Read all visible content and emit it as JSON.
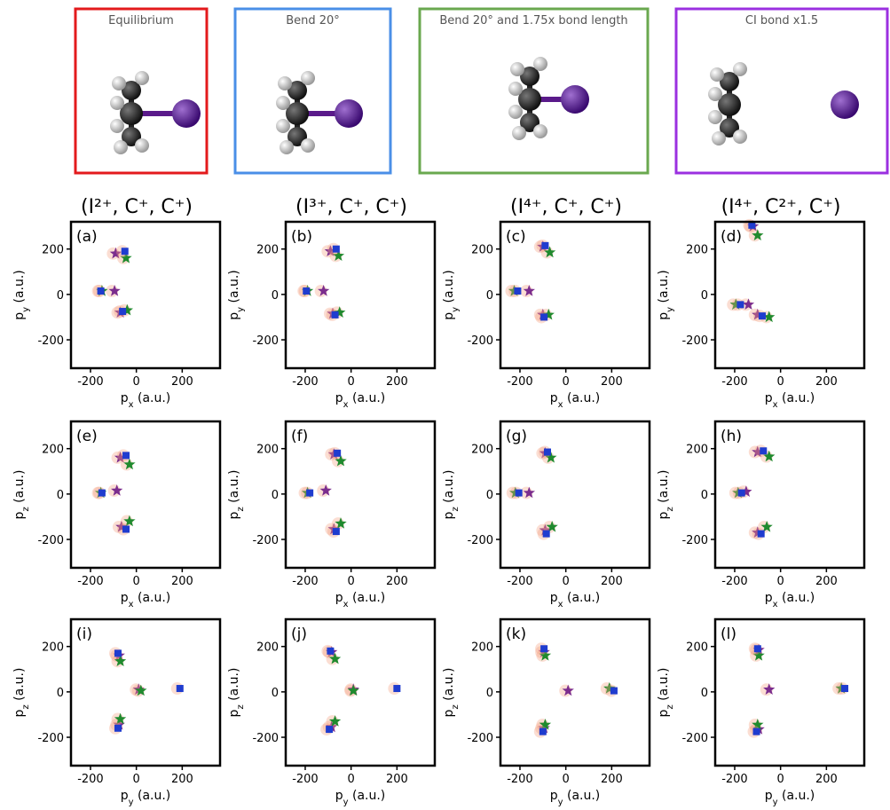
{
  "molecules": [
    {
      "label": "Equilibrium",
      "color": "#e31a1c"
    },
    {
      "label": "Bend 20°",
      "color": "#4a8fe7"
    },
    {
      "label": "Bend 20° and 1.75x bond length",
      "color": "#6aa84f"
    },
    {
      "label": "CI bond x1.5",
      "color": "#9b30e0"
    }
  ],
  "columns": [
    "(I²⁺, C⁺, C⁺)",
    "(I³⁺, C⁺, C⁺)",
    "(I⁴⁺, C⁺, C⁺)",
    "(I⁴⁺, C²⁺, C⁺)"
  ],
  "chart_data": [
    {
      "type": "scatter",
      "label": "(a)",
      "xlabel": "p_x (a.u.)",
      "ylabel": "p_y (a.u.)",
      "xlim": [
        -285,
        365
      ],
      "ylim": [
        -325,
        320
      ],
      "xticks": [
        -200,
        0,
        200
      ],
      "yticks": [
        -200,
        0,
        200
      ],
      "series": [
        {
          "color": "#7b2d8e",
          "marker": "star",
          "x": [
            -90,
            -95,
            -70
          ],
          "y": [
            180,
            15,
            -80
          ]
        },
        {
          "color": "#1f8a2e",
          "marker": "star",
          "x": [
            -45,
            -150,
            -40
          ],
          "y": [
            160,
            15,
            -70
          ]
        },
        {
          "color": "#1f3ccf",
          "marker": "square",
          "x": [
            -50,
            -155,
            -60
          ],
          "y": [
            190,
            15,
            -75
          ]
        }
      ]
    },
    {
      "type": "scatter",
      "label": "(b)",
      "xlabel": "p_x (a.u.)",
      "ylabel": "p_y (a.u.)",
      "xlim": [
        -285,
        365
      ],
      "ylim": [
        -325,
        320
      ],
      "xticks": [
        -200,
        0,
        200
      ],
      "yticks": [
        -200,
        0,
        200
      ],
      "series": [
        {
          "color": "#7b2d8e",
          "marker": "star",
          "x": [
            -90,
            -120,
            -80
          ],
          "y": [
            190,
            15,
            -85
          ]
        },
        {
          "color": "#1f8a2e",
          "marker": "star",
          "x": [
            -55,
            -190,
            -50
          ],
          "y": [
            170,
            15,
            -80
          ]
        },
        {
          "color": "#1f3ccf",
          "marker": "square",
          "x": [
            -65,
            -195,
            -70
          ],
          "y": [
            200,
            15,
            -90
          ]
        }
      ]
    },
    {
      "type": "scatter",
      "label": "(c)",
      "xlabel": "p_x (a.u.)",
      "ylabel": "p_y (a.u.)",
      "xlim": [
        -285,
        365
      ],
      "ylim": [
        -325,
        320
      ],
      "xticks": [
        -200,
        0,
        200
      ],
      "yticks": [
        -200,
        0,
        200
      ],
      "series": [
        {
          "color": "#7b2d8e",
          "marker": "star",
          "x": [
            -100,
            -160,
            -100
          ],
          "y": [
            210,
            15,
            -90
          ]
        },
        {
          "color": "#1f8a2e",
          "marker": "star",
          "x": [
            -70,
            -225,
            -75
          ],
          "y": [
            185,
            15,
            -90
          ]
        },
        {
          "color": "#1f3ccf",
          "marker": "square",
          "x": [
            -90,
            -210,
            -95
          ],
          "y": [
            215,
            15,
            -100
          ]
        }
      ]
    },
    {
      "type": "scatter",
      "label": "(d)",
      "xlabel": "p_x (a.u.)",
      "ylabel": "p_y (a.u.)",
      "xlim": [
        -285,
        365
      ],
      "ylim": [
        -325,
        320
      ],
      "xticks": [
        -200,
        0,
        200
      ],
      "yticks": [
        -200,
        0,
        200
      ],
      "series": [
        {
          "color": "#7b2d8e",
          "marker": "star",
          "x": [
            -120,
            -140,
            -100
          ],
          "y": [
            300,
            -45,
            -90
          ]
        },
        {
          "color": "#1f8a2e",
          "marker": "star",
          "x": [
            -100,
            -195,
            -50
          ],
          "y": [
            260,
            -45,
            -100
          ]
        },
        {
          "color": "#1f3ccf",
          "marker": "square",
          "x": [
            -125,
            -175,
            -80
          ],
          "y": [
            305,
            -45,
            -95
          ]
        }
      ]
    },
    {
      "type": "scatter",
      "label": "(e)",
      "xlabel": "p_x (a.u.)",
      "ylabel": "p_z (a.u.)",
      "xlim": [
        -285,
        365
      ],
      "ylim": [
        -325,
        320
      ],
      "xticks": [
        -200,
        0,
        200
      ],
      "yticks": [
        -200,
        0,
        200
      ],
      "series": [
        {
          "color": "#7b2d8e",
          "marker": "star",
          "x": [
            -70,
            -85,
            -65
          ],
          "y": [
            160,
            15,
            -145
          ]
        },
        {
          "color": "#1f8a2e",
          "marker": "star",
          "x": [
            -30,
            -155,
            -30
          ],
          "y": [
            130,
            5,
            -120
          ]
        },
        {
          "color": "#1f3ccf",
          "marker": "square",
          "x": [
            -45,
            -150,
            -45
          ],
          "y": [
            170,
            5,
            -155
          ]
        }
      ]
    },
    {
      "type": "scatter",
      "label": "(f)",
      "xlabel": "p_x (a.u.)",
      "ylabel": "p_z (a.u.)",
      "xlim": [
        -285,
        365
      ],
      "ylim": [
        -325,
        320
      ],
      "xticks": [
        -200,
        0,
        200
      ],
      "yticks": [
        -200,
        0,
        200
      ],
      "series": [
        {
          "color": "#7b2d8e",
          "marker": "star",
          "x": [
            -75,
            -110,
            -75
          ],
          "y": [
            175,
            15,
            -155
          ]
        },
        {
          "color": "#1f8a2e",
          "marker": "star",
          "x": [
            -45,
            -190,
            -45
          ],
          "y": [
            145,
            5,
            -130
          ]
        },
        {
          "color": "#1f3ccf",
          "marker": "square",
          "x": [
            -60,
            -180,
            -65
          ],
          "y": [
            180,
            5,
            -165
          ]
        }
      ]
    },
    {
      "type": "scatter",
      "label": "(g)",
      "xlabel": "p_x (a.u.)",
      "ylabel": "p_z (a.u.)",
      "xlim": [
        -285,
        365
      ],
      "ylim": [
        -325,
        320
      ],
      "xticks": [
        -200,
        0,
        200
      ],
      "yticks": [
        -200,
        0,
        200
      ],
      "series": [
        {
          "color": "#7b2d8e",
          "marker": "star",
          "x": [
            -90,
            -160,
            -90
          ],
          "y": [
            180,
            5,
            -160
          ]
        },
        {
          "color": "#1f8a2e",
          "marker": "star",
          "x": [
            -65,
            -220,
            -60
          ],
          "y": [
            160,
            5,
            -145
          ]
        },
        {
          "color": "#1f3ccf",
          "marker": "square",
          "x": [
            -80,
            -205,
            -85
          ],
          "y": [
            185,
            5,
            -175
          ]
        }
      ]
    },
    {
      "type": "scatter",
      "label": "(h)",
      "xlabel": "p_x (a.u.)",
      "ylabel": "p_z (a.u.)",
      "xlim": [
        -285,
        365
      ],
      "ylim": [
        -325,
        320
      ],
      "xticks": [
        -200,
        0,
        200
      ],
      "yticks": [
        -200,
        0,
        200
      ],
      "series": [
        {
          "color": "#7b2d8e",
          "marker": "star",
          "x": [
            -100,
            -150,
            -100
          ],
          "y": [
            185,
            10,
            -170
          ]
        },
        {
          "color": "#1f8a2e",
          "marker": "star",
          "x": [
            -50,
            -185,
            -60
          ],
          "y": [
            165,
            5,
            -145
          ]
        },
        {
          "color": "#1f3ccf",
          "marker": "square",
          "x": [
            -75,
            -170,
            -85
          ],
          "y": [
            190,
            5,
            -175
          ]
        }
      ]
    },
    {
      "type": "scatter",
      "label": "(i)",
      "xlabel": "p_y (a.u.)",
      "ylabel": "p_z (a.u.)",
      "xlim": [
        -285,
        365
      ],
      "ylim": [
        -325,
        320
      ],
      "xticks": [
        -200,
        0,
        200
      ],
      "yticks": [
        -200,
        0,
        200
      ],
      "series": [
        {
          "color": "#7b2d8e",
          "marker": "star",
          "x": [
            -75,
            10,
            -75
          ],
          "y": [
            160,
            10,
            -145
          ]
        },
        {
          "color": "#1f8a2e",
          "marker": "star",
          "x": [
            -70,
            20,
            -70
          ],
          "y": [
            135,
            5,
            -120
          ]
        },
        {
          "color": "#1f3ccf",
          "marker": "square",
          "x": [
            -80,
            190,
            -80
          ],
          "y": [
            170,
            15,
            -160
          ]
        }
      ]
    },
    {
      "type": "scatter",
      "label": "(j)",
      "xlabel": "p_y (a.u.)",
      "ylabel": "p_z (a.u.)",
      "xlim": [
        -285,
        365
      ],
      "ylim": [
        -325,
        320
      ],
      "xticks": [
        -200,
        0,
        200
      ],
      "yticks": [
        -200,
        0,
        200
      ],
      "series": [
        {
          "color": "#7b2d8e",
          "marker": "star",
          "x": [
            -85,
            10,
            -85
          ],
          "y": [
            175,
            10,
            -155
          ]
        },
        {
          "color": "#1f8a2e",
          "marker": "star",
          "x": [
            -70,
            10,
            -70
          ],
          "y": [
            145,
            5,
            -130
          ]
        },
        {
          "color": "#1f3ccf",
          "marker": "square",
          "x": [
            -90,
            200,
            -95
          ],
          "y": [
            180,
            15,
            -165
          ]
        }
      ]
    },
    {
      "type": "scatter",
      "label": "(k)",
      "xlabel": "p_y (a.u.)",
      "ylabel": "p_z (a.u.)",
      "xlim": [
        -285,
        365
      ],
      "ylim": [
        -325,
        320
      ],
      "xticks": [
        -200,
        0,
        200
      ],
      "yticks": [
        -200,
        0,
        200
      ],
      "series": [
        {
          "color": "#7b2d8e",
          "marker": "star",
          "x": [
            -95,
            10,
            -95
          ],
          "y": [
            175,
            5,
            -160
          ]
        },
        {
          "color": "#1f8a2e",
          "marker": "star",
          "x": [
            -90,
            190,
            -90
          ],
          "y": [
            160,
            15,
            -145
          ]
        },
        {
          "color": "#1f3ccf",
          "marker": "square",
          "x": [
            -95,
            210,
            -100
          ],
          "y": [
            190,
            5,
            -175
          ]
        }
      ]
    },
    {
      "type": "scatter",
      "label": "(l)",
      "xlabel": "p_y (a.u.)",
      "ylabel": "p_z (a.u.)",
      "xlim": [
        -285,
        365
      ],
      "ylim": [
        -325,
        320
      ],
      "xticks": [
        -200,
        0,
        200
      ],
      "yticks": [
        -200,
        0,
        200
      ],
      "series": [
        {
          "color": "#7b2d8e",
          "marker": "star",
          "x": [
            -95,
            -50,
            -95
          ],
          "y": [
            185,
            10,
            -165
          ]
        },
        {
          "color": "#1f8a2e",
          "marker": "star",
          "x": [
            -95,
            265,
            -100
          ],
          "y": [
            160,
            15,
            -145
          ]
        },
        {
          "color": "#1f3ccf",
          "marker": "square",
          "x": [
            -100,
            280,
            -105
          ],
          "y": [
            190,
            15,
            -175
          ]
        }
      ]
    }
  ]
}
